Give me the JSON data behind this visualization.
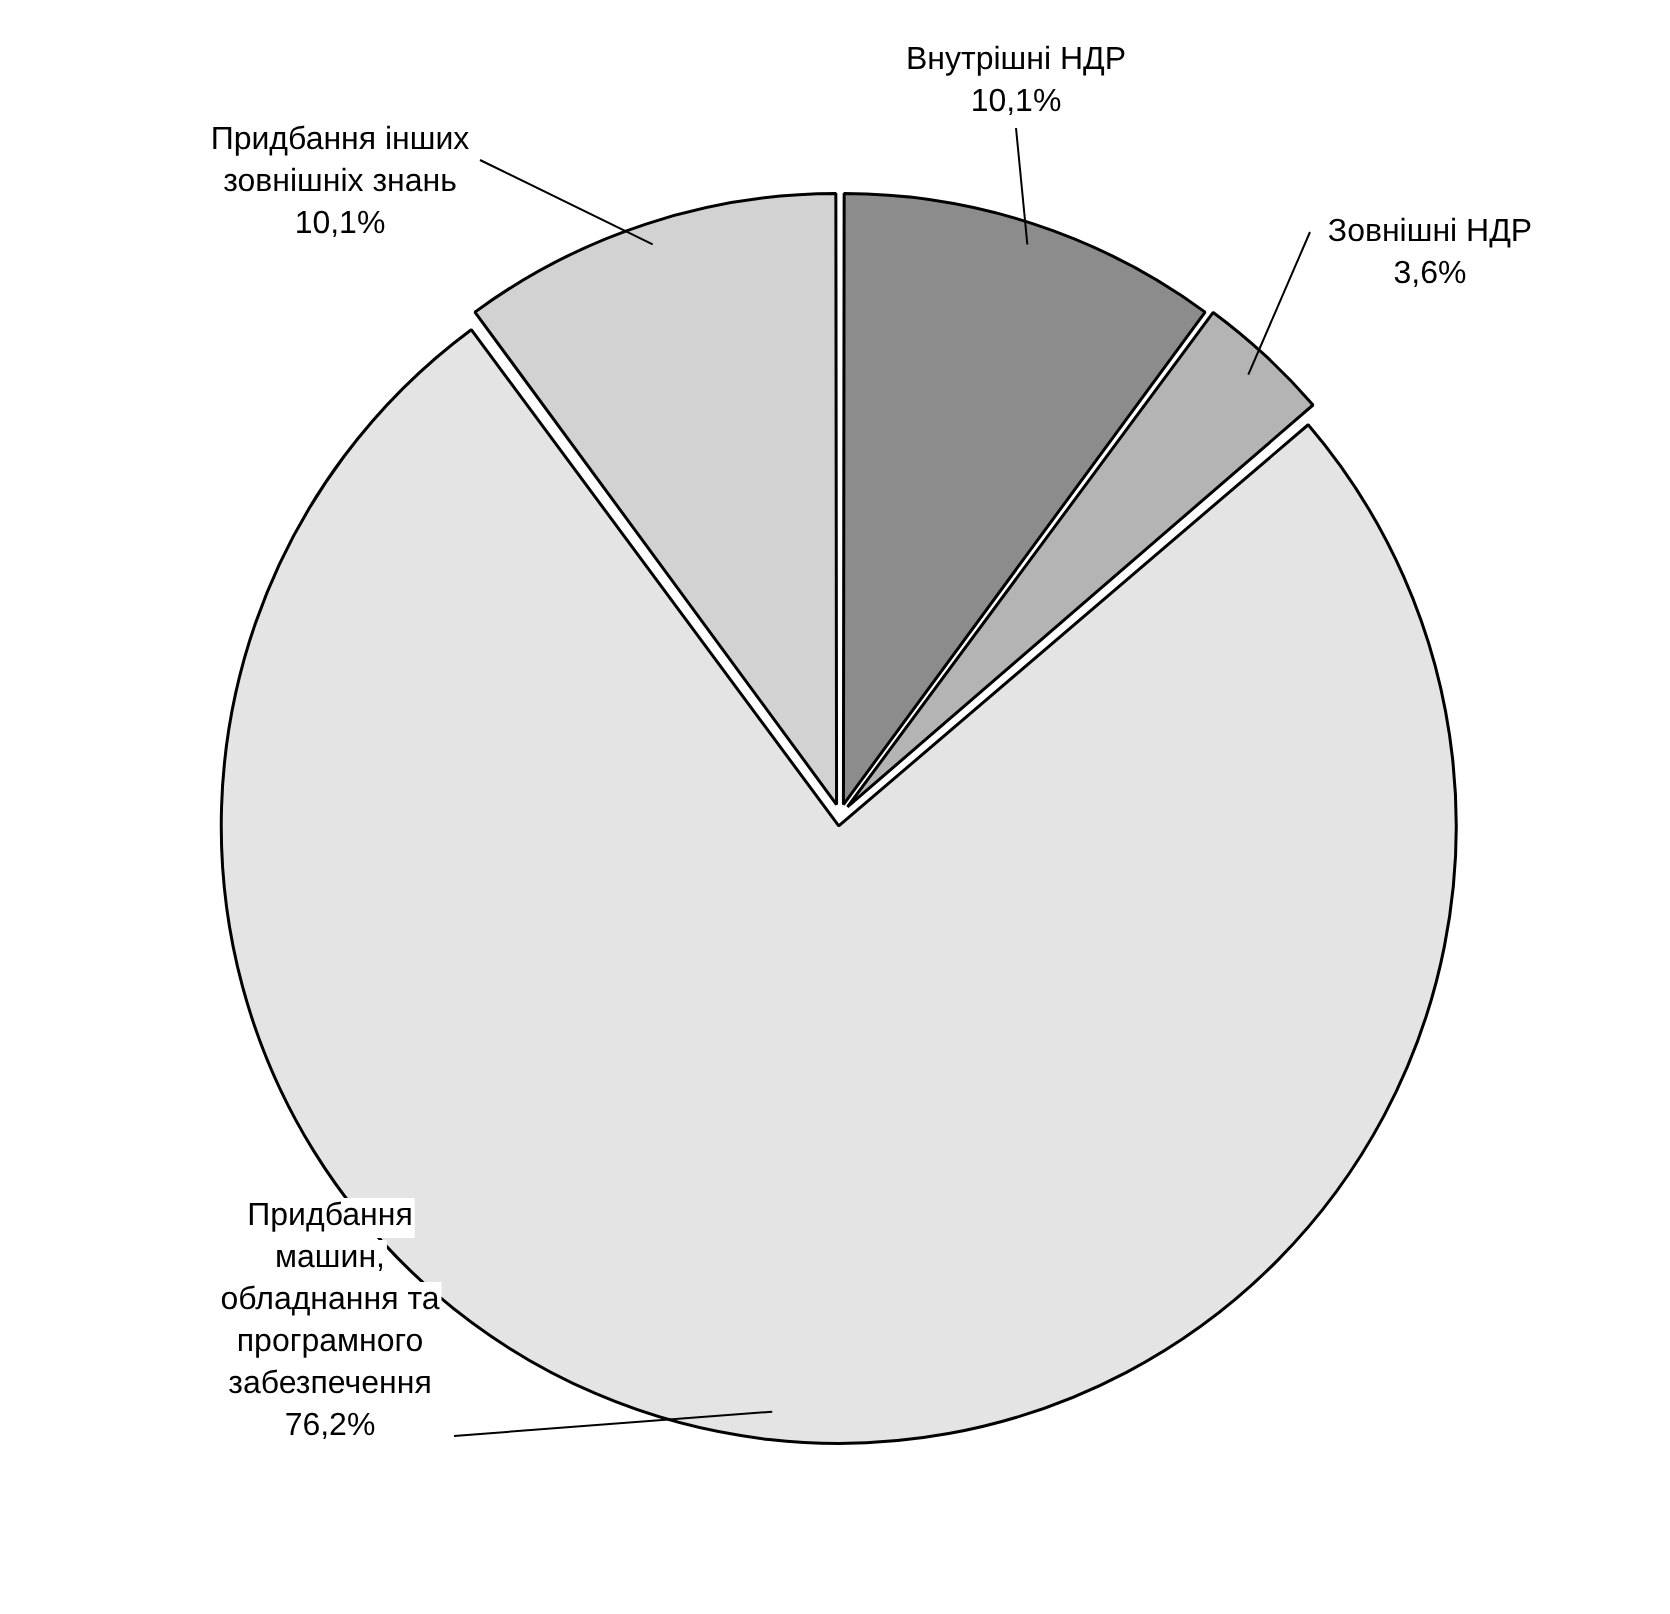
{
  "chart_data": {
    "type": "pie",
    "categories": [
      "Внутрішні НДР",
      "Зовнішні НДР",
      "Придбання машин, обладнання та програмного забезпечення",
      "Придбання інших зовнішніх знань"
    ],
    "values": [
      10.1,
      3.6,
      76.2,
      10.1
    ],
    "value_labels": [
      "10,1%",
      "3,6%",
      "76,2%",
      "10,1%"
    ],
    "colors": [
      "#8c8c8c",
      "#b4b4b4",
      "#e4e4e4",
      "#d2d2d2"
    ],
    "legend": false
  }
}
